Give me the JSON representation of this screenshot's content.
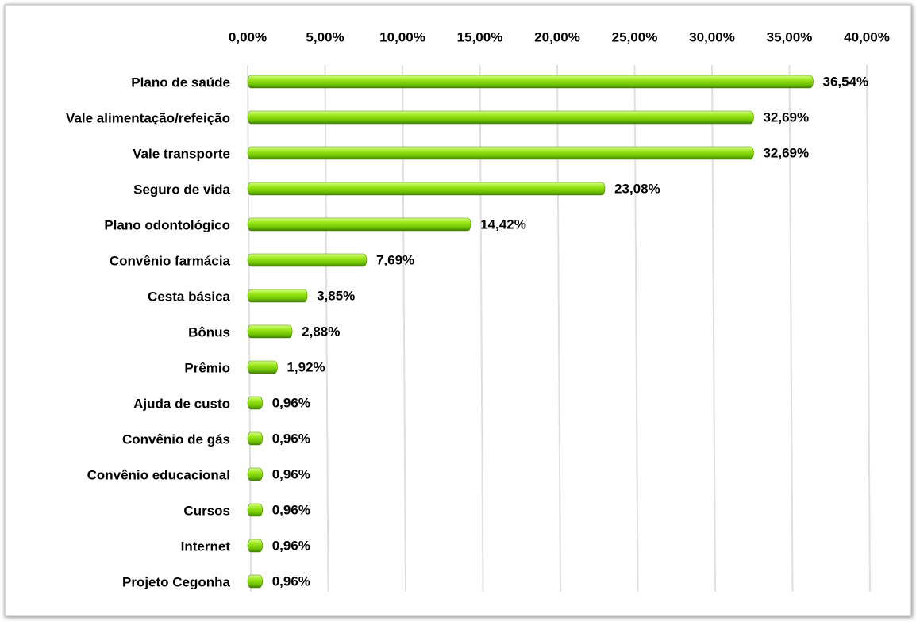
{
  "chart_data": {
    "type": "bar",
    "orientation": "horizontal",
    "categories": [
      "Plano de saúde",
      "Vale alimentação/refeição",
      "Vale transporte",
      "Seguro de vida",
      "Plano odontológico",
      "Convênio farmácia",
      "Cesta básica",
      "Bônus",
      "Prêmio",
      "Ajuda de custo",
      "Convênio de gás",
      "Convênio educacional",
      "Cursos",
      "Internet",
      "Projeto Cegonha"
    ],
    "values": [
      36.54,
      32.69,
      32.69,
      23.08,
      14.42,
      7.69,
      3.85,
      2.88,
      1.92,
      0.96,
      0.96,
      0.96,
      0.96,
      0.96,
      0.96
    ],
    "value_labels": [
      "36,54%",
      "32,69%",
      "32,69%",
      "23,08%",
      "14,42%",
      "7,69%",
      "3,85%",
      "2,88%",
      "1,92%",
      "0,96%",
      "0,96%",
      "0,96%",
      "0,96%",
      "0,96%",
      "0,96%"
    ],
    "color": "#7fd600",
    "xlim": [
      0,
      40
    ],
    "xticks": [
      {
        "value": 0,
        "label": "0,00%"
      },
      {
        "value": 5,
        "label": "5,00%"
      },
      {
        "value": 10,
        "label": "10,00%"
      },
      {
        "value": 15,
        "label": "15,00%"
      },
      {
        "value": 20,
        "label": "20,00%"
      },
      {
        "value": 25,
        "label": "25,00%"
      },
      {
        "value": 30,
        "label": "30,00%"
      },
      {
        "value": 35,
        "label": "35,00%"
      },
      {
        "value": 40,
        "label": "40,00%"
      }
    ],
    "grid": true
  }
}
